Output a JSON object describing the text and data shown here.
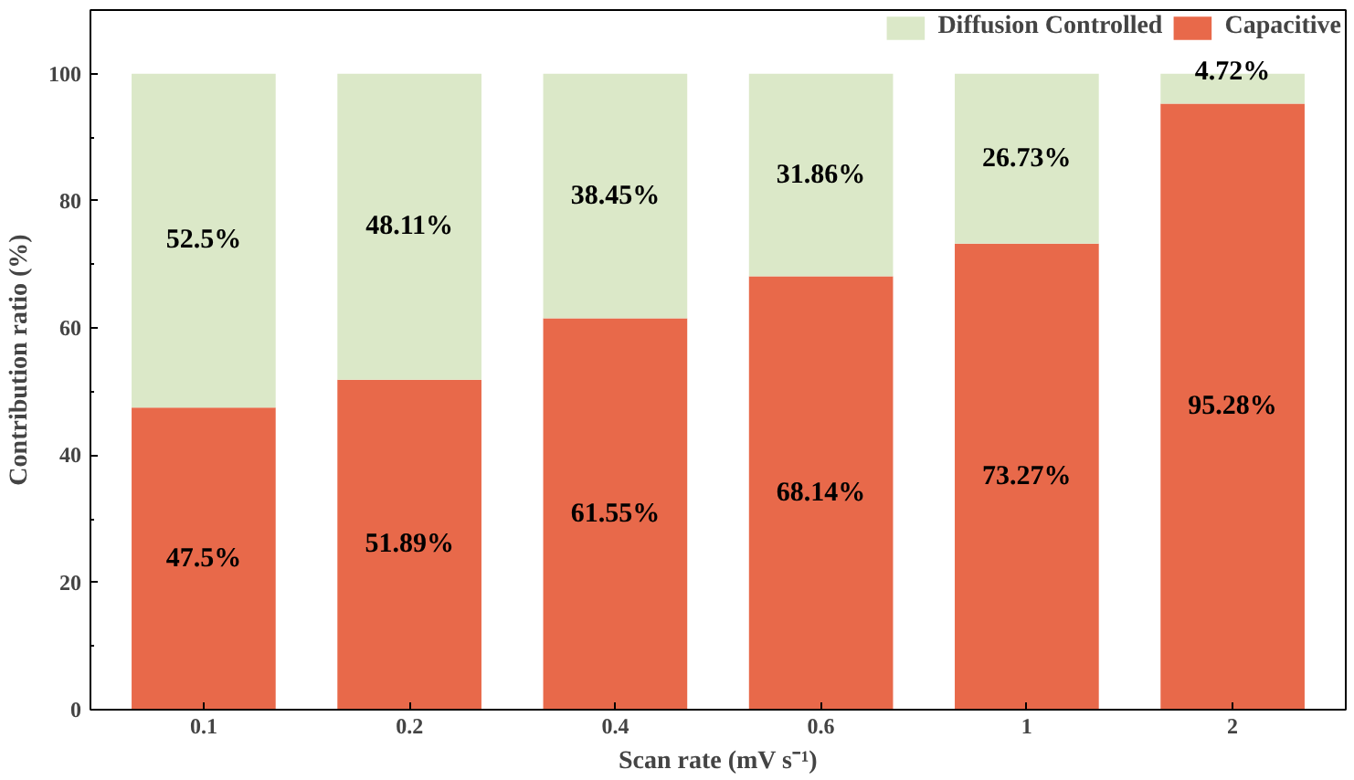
{
  "chart_data": {
    "type": "bar",
    "stacked": true,
    "xlabel": "Scan rate (mV s⁻¹)",
    "ylabel": "Contribution ratio (%)",
    "categories": [
      "0.1",
      "0.2",
      "0.4",
      "0.6",
      "1",
      "2"
    ],
    "series": [
      {
        "name": "Capacitive",
        "color": "#e8694a",
        "values": [
          47.5,
          51.89,
          61.55,
          68.14,
          73.27,
          95.28
        ],
        "value_labels": [
          "47.5%",
          "51.89%",
          "61.55%",
          "68.14%",
          "73.27%",
          "95.28%"
        ]
      },
      {
        "name": "Diffusion Controlled",
        "color": "#dbe8c8",
        "values": [
          52.5,
          48.11,
          38.45,
          31.86,
          26.73,
          4.72
        ],
        "value_labels": [
          "52.5%",
          "48.11%",
          "38.45%",
          "31.86%",
          "26.73%",
          "4.72%"
        ]
      }
    ],
    "ylim": [
      0,
      110
    ],
    "yticks": [
      0,
      20,
      40,
      60,
      80,
      100
    ],
    "legend": "top right",
    "grid": false
  }
}
